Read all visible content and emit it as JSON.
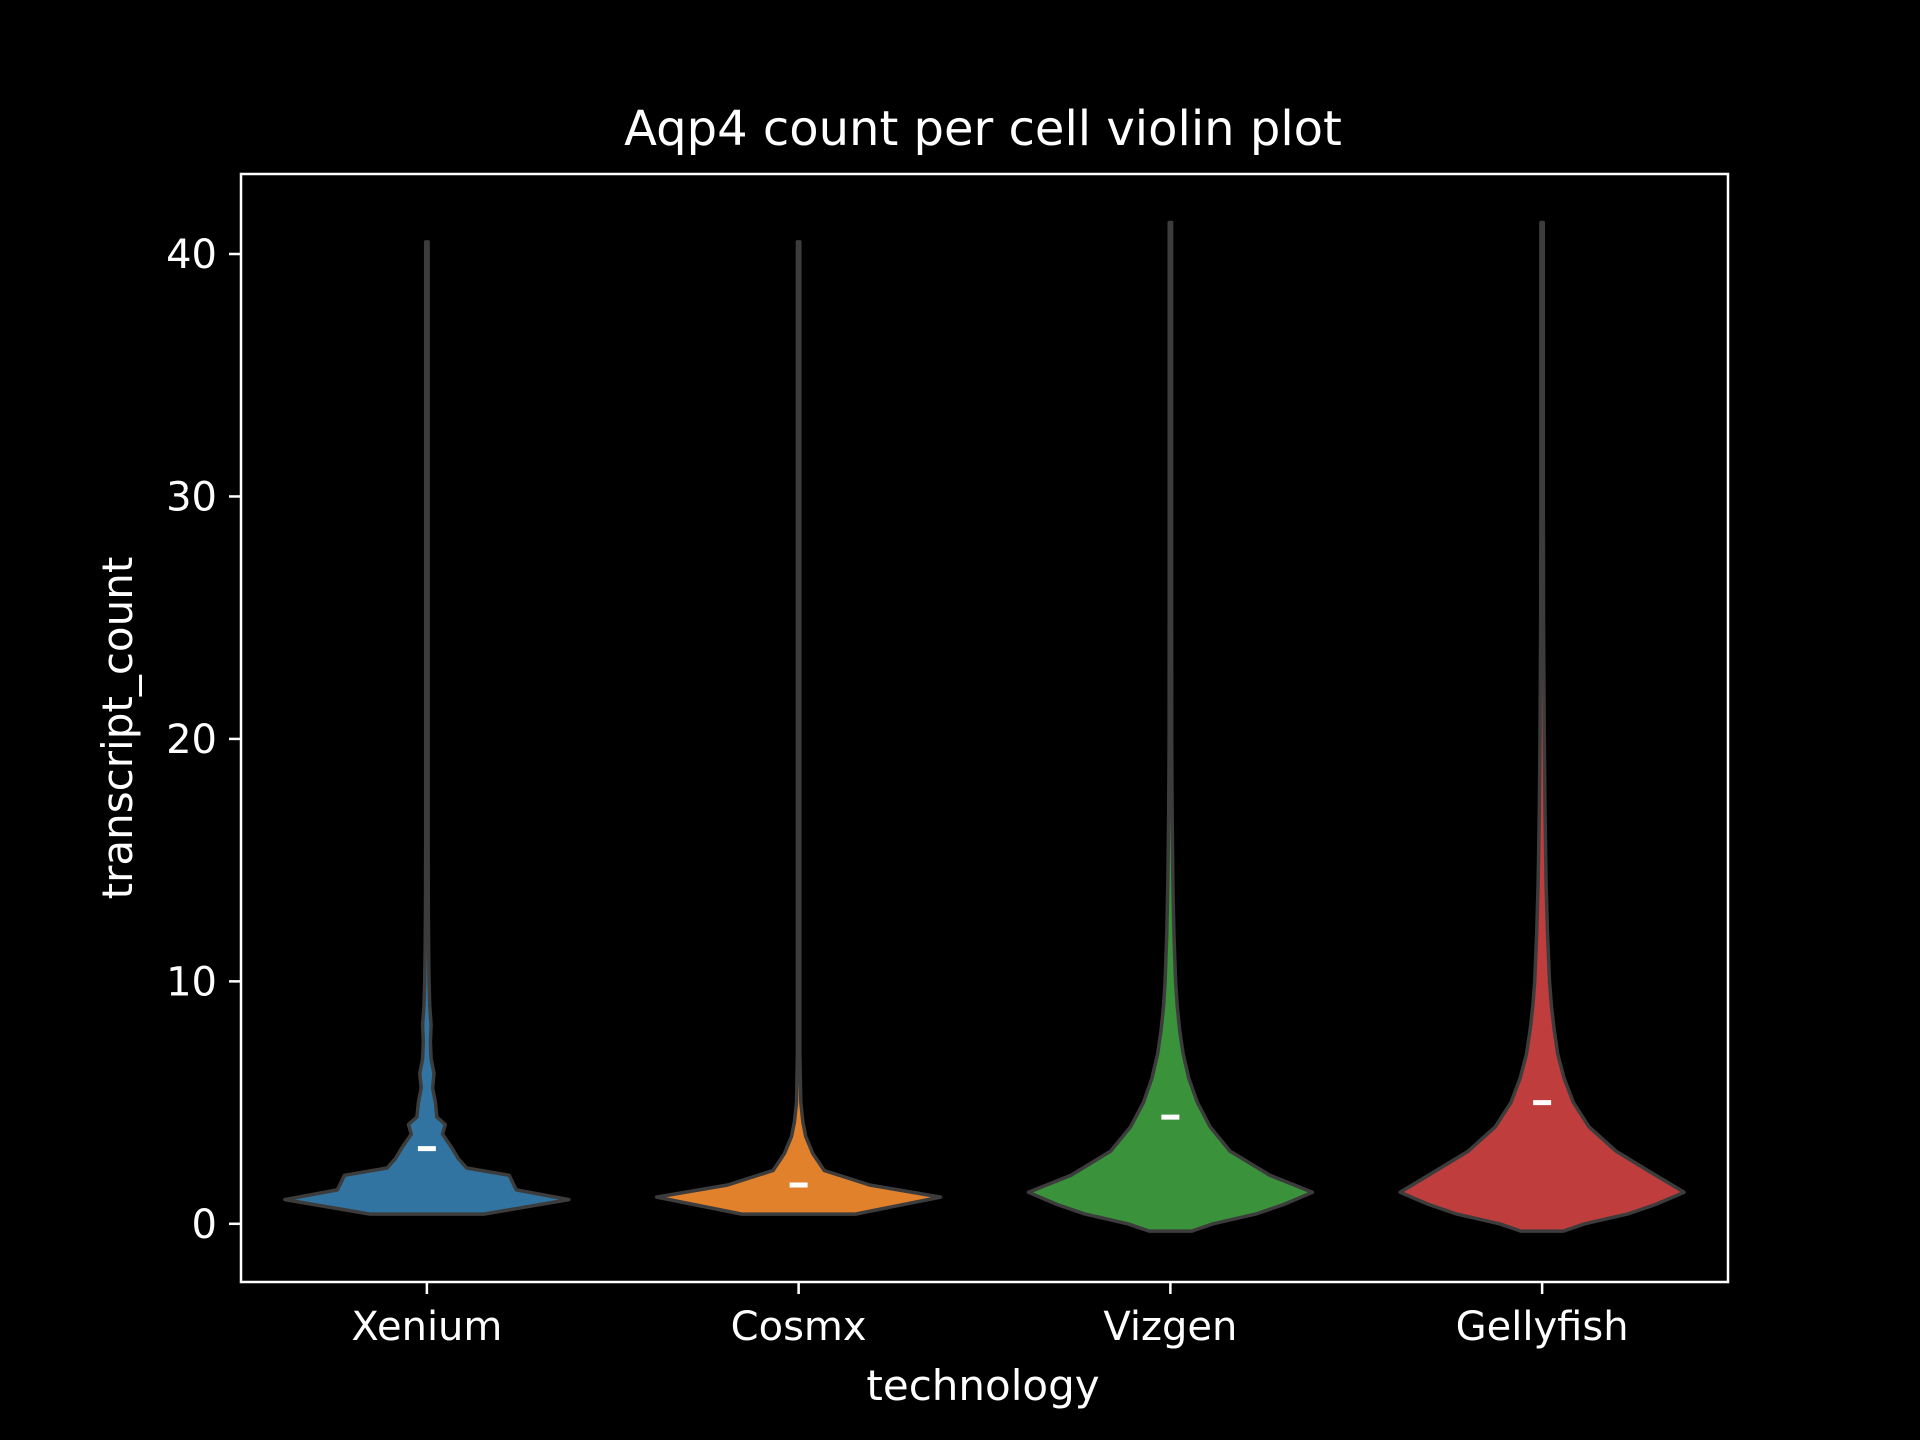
{
  "chart_data": {
    "type": "violin",
    "title": "Aqp4 count per cell violin plot",
    "xlabel": "technology",
    "ylabel": "transcript_count",
    "categories": [
      "Xenium",
      "Cosmx",
      "Vizgen",
      "Gellyfish"
    ],
    "ylim": [
      -2.4,
      43.3
    ],
    "yticks": [
      0,
      10,
      20,
      30,
      40
    ],
    "grid": false,
    "legend": "none",
    "outline_color": "#3c3c3c",
    "series": [
      {
        "name": "Xenium",
        "color": "#3274a1",
        "mean_marker": 3.1,
        "range": [
          0.4,
          40.5
        ],
        "density": [
          [
            0.4,
            0.4
          ],
          [
            1.0,
            1.0
          ],
          [
            1.4,
            0.63
          ],
          [
            2.0,
            0.58
          ],
          [
            2.3,
            0.28
          ],
          [
            2.7,
            0.22
          ],
          [
            3.1,
            0.18
          ],
          [
            3.7,
            0.11
          ],
          [
            4.1,
            0.13
          ],
          [
            4.4,
            0.07
          ],
          [
            5.0,
            0.06
          ],
          [
            5.6,
            0.04
          ],
          [
            6.2,
            0.05
          ],
          [
            6.8,
            0.03
          ],
          [
            7.5,
            0.025
          ],
          [
            8.2,
            0.03
          ],
          [
            9.0,
            0.02
          ],
          [
            10.0,
            0.015
          ],
          [
            11.5,
            0.012
          ],
          [
            13.0,
            0.01
          ],
          [
            16.0,
            0.006
          ],
          [
            20.0,
            0.004
          ],
          [
            30.0,
            0.003
          ],
          [
            40.5,
            0.002
          ]
        ]
      },
      {
        "name": "Cosmx",
        "color": "#e1812c",
        "mean_marker": 1.6,
        "range": [
          0.4,
          40.5
        ],
        "density": [
          [
            0.4,
            0.4
          ],
          [
            1.1,
            1.0
          ],
          [
            1.6,
            0.5
          ],
          [
            2.2,
            0.18
          ],
          [
            2.9,
            0.1
          ],
          [
            3.6,
            0.05
          ],
          [
            4.2,
            0.03
          ],
          [
            5.0,
            0.015
          ],
          [
            7.0,
            0.008
          ],
          [
            10.0,
            0.006
          ],
          [
            20.0,
            0.004
          ],
          [
            40.5,
            0.003
          ]
        ]
      },
      {
        "name": "Vizgen",
        "color": "#3a923a",
        "mean_marker": 4.4,
        "range": [
          -0.3,
          41.3
        ],
        "density": [
          [
            -0.3,
            0.15
          ],
          [
            0.0,
            0.3
          ],
          [
            0.4,
            0.6
          ],
          [
            0.8,
            0.8
          ],
          [
            1.3,
            1.0
          ],
          [
            2.0,
            0.7
          ],
          [
            3.0,
            0.42
          ],
          [
            4.0,
            0.28
          ],
          [
            5.0,
            0.19
          ],
          [
            6.0,
            0.13
          ],
          [
            7.0,
            0.09
          ],
          [
            8.0,
            0.065
          ],
          [
            9.0,
            0.048
          ],
          [
            10.0,
            0.037
          ],
          [
            12.0,
            0.025
          ],
          [
            14.0,
            0.018
          ],
          [
            17.0,
            0.012
          ],
          [
            20.0,
            0.009
          ],
          [
            25.0,
            0.007
          ],
          [
            30.0,
            0.006
          ],
          [
            35.0,
            0.005
          ],
          [
            41.3,
            0.004
          ]
        ]
      },
      {
        "name": "Gellyfish",
        "color": "#c03d3e",
        "mean_marker": 5.0,
        "range": [
          -0.3,
          41.3
        ],
        "density": [
          [
            -0.3,
            0.15
          ],
          [
            0.0,
            0.3
          ],
          [
            0.4,
            0.6
          ],
          [
            0.8,
            0.8
          ],
          [
            1.3,
            1.0
          ],
          [
            2.0,
            0.8
          ],
          [
            3.0,
            0.52
          ],
          [
            4.0,
            0.33
          ],
          [
            5.0,
            0.22
          ],
          [
            6.0,
            0.155
          ],
          [
            7.0,
            0.11
          ],
          [
            8.0,
            0.085
          ],
          [
            9.0,
            0.065
          ],
          [
            10.0,
            0.052
          ],
          [
            12.0,
            0.038
          ],
          [
            14.0,
            0.028
          ],
          [
            17.0,
            0.02
          ],
          [
            20.0,
            0.015
          ],
          [
            25.0,
            0.01
          ],
          [
            30.0,
            0.008
          ],
          [
            35.0,
            0.006
          ],
          [
            41.3,
            0.005
          ]
        ]
      }
    ]
  }
}
